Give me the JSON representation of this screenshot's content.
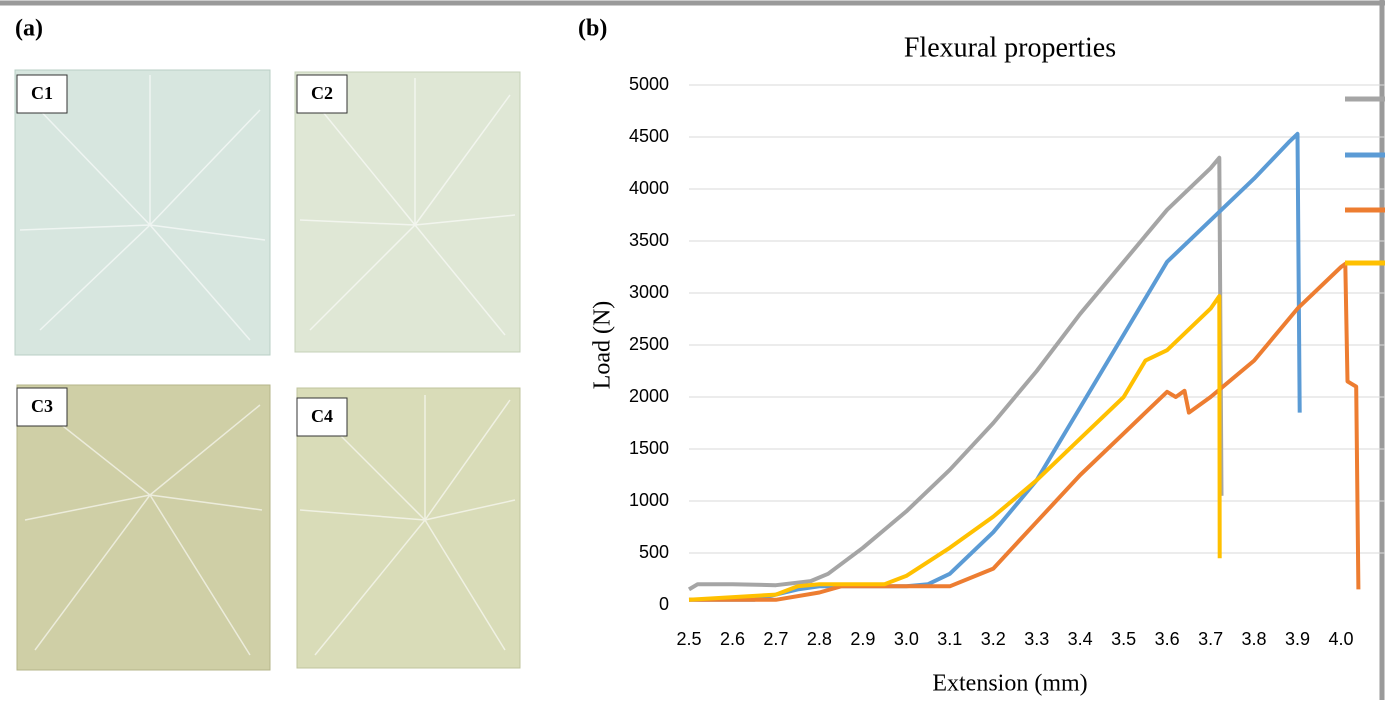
{
  "figure_labels": [
    "(a)",
    "(b)"
  ],
  "photos": [
    {
      "label": "C1"
    },
    {
      "label": "C2"
    },
    {
      "label": "C3"
    },
    {
      "label": "C4"
    }
  ],
  "chart_data": {
    "type": "line",
    "title": "Flexural properties",
    "x_label": "Extension (mm)",
    "y_label": "Load (N)",
    "xlim": [
      2.5,
      4.0
    ],
    "xticks": [
      2.5,
      2.6,
      2.7,
      2.8,
      2.9,
      {
        "value": 3,
        "label": "3.0"
      },
      3.1,
      3.2,
      3.3,
      3.4,
      3.5,
      3.6,
      3.7,
      3.8,
      3.9,
      {
        "value": 4,
        "label": "4.0"
      }
    ],
    "ylim": [
      0,
      5000
    ],
    "yticks": [
      0,
      500,
      1000,
      1500,
      2000,
      2500,
      3000,
      3500,
      4000,
      4500,
      5000
    ],
    "grid": true,
    "series": [
      {
        "color": "#a5a5a5",
        "x": [
          2.5,
          2.52,
          2.6,
          2.7,
          2.78,
          2.82,
          2.9,
          3.0,
          3.1,
          3.2,
          3.3,
          3.4,
          3.5,
          3.6,
          3.7,
          3.72,
          3.725
        ],
        "values": [
          150,
          200,
          200,
          190,
          230,
          300,
          550,
          900,
          1300,
          1750,
          2250,
          2800,
          3300,
          3800,
          4200,
          4300,
          1050
        ]
      },
      {
        "color": "#5b9bd5",
        "x": [
          2.5,
          2.65,
          2.7,
          2.75,
          2.8,
          3.0,
          3.05,
          3.1,
          3.2,
          3.3,
          3.4,
          3.5,
          3.6,
          3.7,
          3.8,
          3.88,
          3.9,
          3.905
        ],
        "values": [
          50,
          50,
          100,
          150,
          180,
          180,
          200,
          300,
          700,
          1200,
          1900,
          2600,
          3300,
          3700,
          4100,
          4450,
          4530,
          1850
        ]
      },
      {
        "color": "#ed7d31",
        "x": [
          2.5,
          2.7,
          2.8,
          2.85,
          3.1,
          3.2,
          3.3,
          3.4,
          3.5,
          3.6,
          3.62,
          3.64,
          3.65,
          3.7,
          3.8,
          3.9,
          4.0,
          4.01,
          4.015,
          4.035,
          4.04
        ],
        "values": [
          50,
          50,
          120,
          180,
          180,
          350,
          800,
          1250,
          1650,
          2050,
          2000,
          2060,
          1850,
          2000,
          2350,
          2850,
          3250,
          3280,
          2150,
          2100,
          150
        ]
      },
      {
        "color": "#ffc000",
        "x": [
          2.5,
          2.7,
          2.75,
          2.8,
          2.95,
          3.0,
          3.1,
          3.2,
          3.3,
          3.4,
          3.5,
          3.55,
          3.6,
          3.7,
          3.72,
          3.721
        ],
        "values": [
          50,
          100,
          180,
          200,
          200,
          280,
          550,
          850,
          1200,
          1600,
          2000,
          2350,
          2450,
          2850,
          2970,
          450
        ]
      }
    ]
  }
}
